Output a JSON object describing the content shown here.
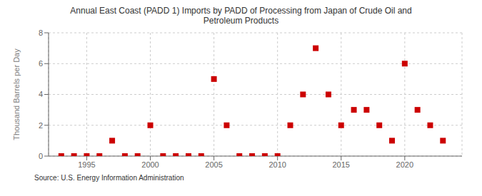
{
  "chart_data": {
    "type": "scatter",
    "title": "Annual East Coast (PADD 1) Imports by PADD of Processing from Japan of Crude Oil and\nPetroleum Products",
    "ylabel": "Thousand Barrels per Day",
    "annotation": "Source: U.S. Energy Information Administration",
    "x": [
      1993,
      1994,
      1995,
      1996,
      1997,
      1998,
      1999,
      2000,
      2001,
      2002,
      2003,
      2004,
      2005,
      2006,
      2007,
      2008,
      2009,
      2010,
      2011,
      2012,
      2013,
      2014,
      2015,
      2016,
      2017,
      2018,
      2019,
      2020,
      2021,
      2022,
      2023
    ],
    "values": [
      0,
      0,
      0,
      0,
      1,
      0,
      0,
      2,
      0,
      0,
      0,
      0,
      5,
      2,
      0,
      0,
      0,
      0,
      2,
      4,
      7,
      4,
      2,
      3,
      3,
      2,
      1,
      6,
      3,
      2,
      1
    ],
    "color": "#cc0000",
    "marker": "square",
    "xlim": [
      1992,
      2024.5
    ],
    "ylim": [
      0,
      8
    ],
    "xticks": [
      1995,
      2000,
      2005,
      2010,
      2015,
      2020
    ],
    "yticks": [
      0,
      2,
      4,
      6,
      8
    ],
    "grid": true
  }
}
